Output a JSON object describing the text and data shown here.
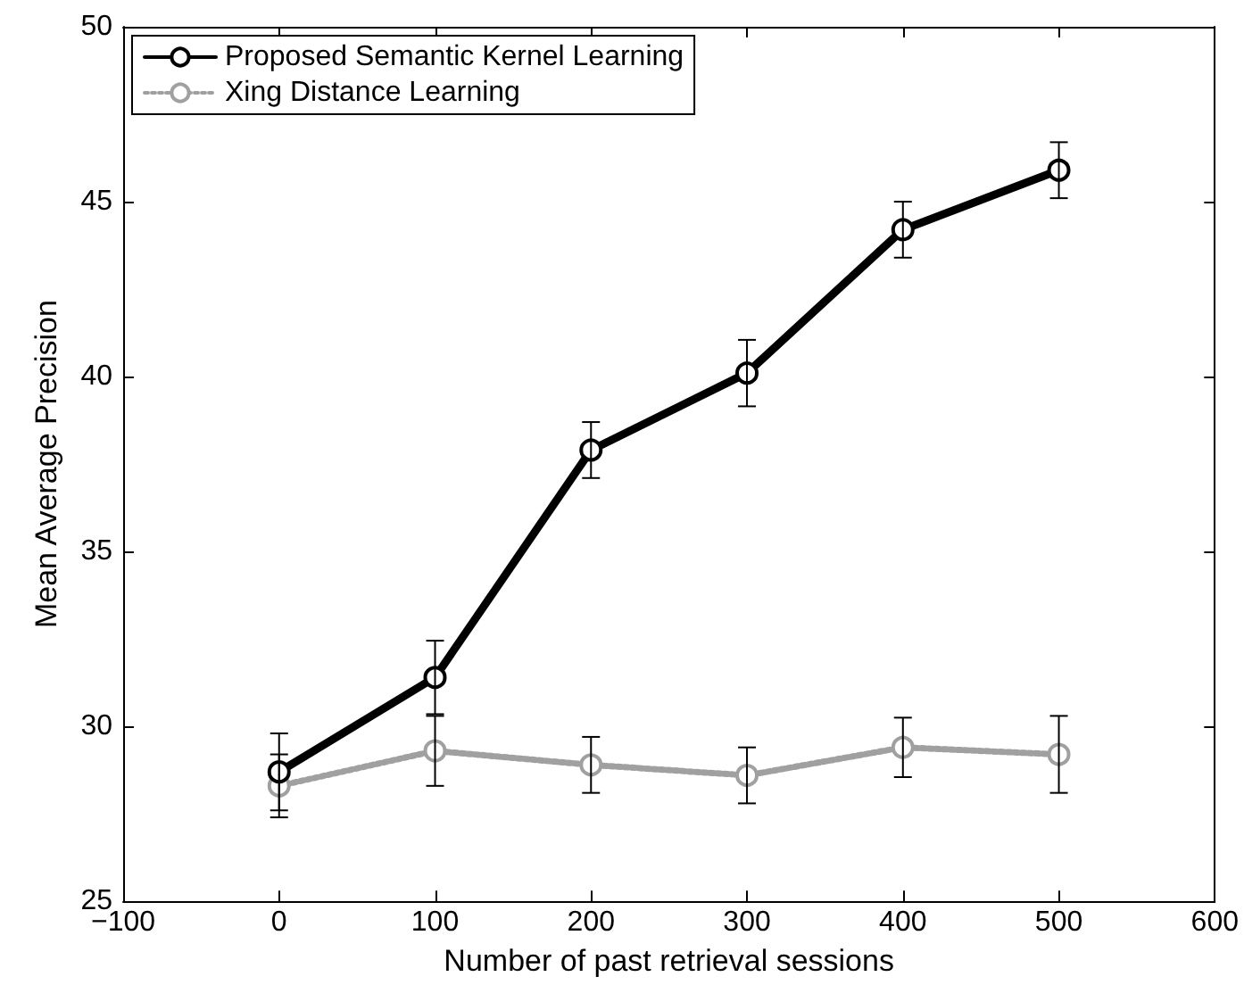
{
  "chart_data": {
    "type": "line",
    "xlabel": "Number of past retrieval sessions",
    "ylabel": "Mean Average Precision",
    "x": [
      0,
      100,
      200,
      300,
      400,
      500
    ],
    "series": [
      {
        "name": "Proposed Semantic Kernel Learning",
        "color": "#000000",
        "line_style": "solid",
        "values": [
          28.7,
          31.4,
          37.9,
          40.1,
          44.2,
          45.9
        ],
        "errors": [
          1.1,
          1.05,
          0.8,
          0.95,
          0.8,
          0.8
        ]
      },
      {
        "name": "Xing Distance Learning",
        "color": "#a0a0a0",
        "line_style": "dotted",
        "values": [
          28.3,
          29.3,
          28.9,
          28.6,
          29.4,
          29.2
        ],
        "errors": [
          0.9,
          1.0,
          0.8,
          0.8,
          0.85,
          1.1
        ]
      }
    ],
    "xlim": [
      -100,
      600
    ],
    "xticks": [
      -100,
      0,
      100,
      200,
      300,
      400,
      500,
      600
    ],
    "ylim": [
      25,
      50
    ],
    "yticks": [
      25,
      30,
      35,
      40,
      45,
      50
    ],
    "marker": "circle",
    "grid": false,
    "legend": "top left"
  }
}
